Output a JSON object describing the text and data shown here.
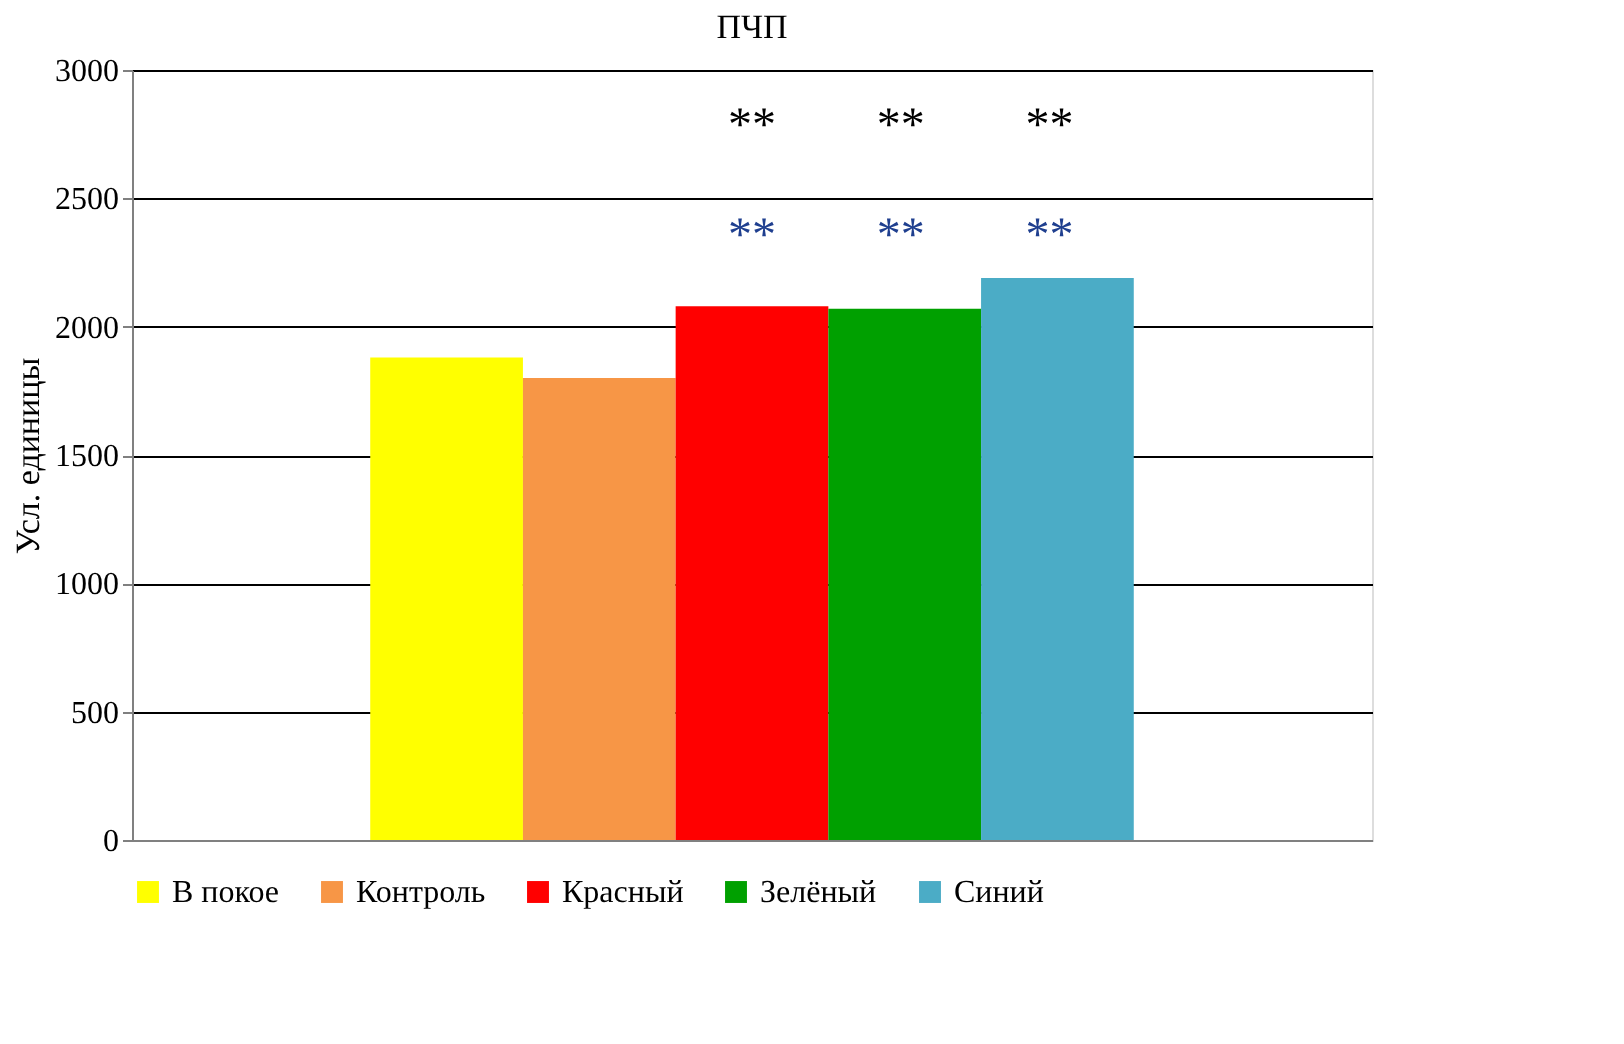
{
  "chart_data": {
    "type": "bar",
    "title": "ПЧП",
    "ylabel": "Усл. единицы",
    "categories": [
      null
    ],
    "series": [
      {
        "name": "В покое",
        "color": "#ffff00",
        "values": [
          1880
        ]
      },
      {
        "name": "Контроль",
        "color": "#f79646",
        "values": [
          1800
        ]
      },
      {
        "name": "Красный",
        "color": "#ff0000",
        "values": [
          2080
        ]
      },
      {
        "name": "Зелёный",
        "color": "#00a000",
        "values": [
          2070
        ]
      },
      {
        "name": "Синий",
        "color": "#4bacc6",
        "values": [
          2190
        ]
      }
    ],
    "ylim": [
      0,
      3000
    ],
    "yticks": [
      0,
      500,
      1000,
      1500,
      2000,
      2500,
      3000
    ],
    "grid": "y",
    "legend": "bottom",
    "tick_labels": "y",
    "annotations": [
      "**",
      "**",
      "**",
      "**",
      "**",
      "**"
    ]
  }
}
